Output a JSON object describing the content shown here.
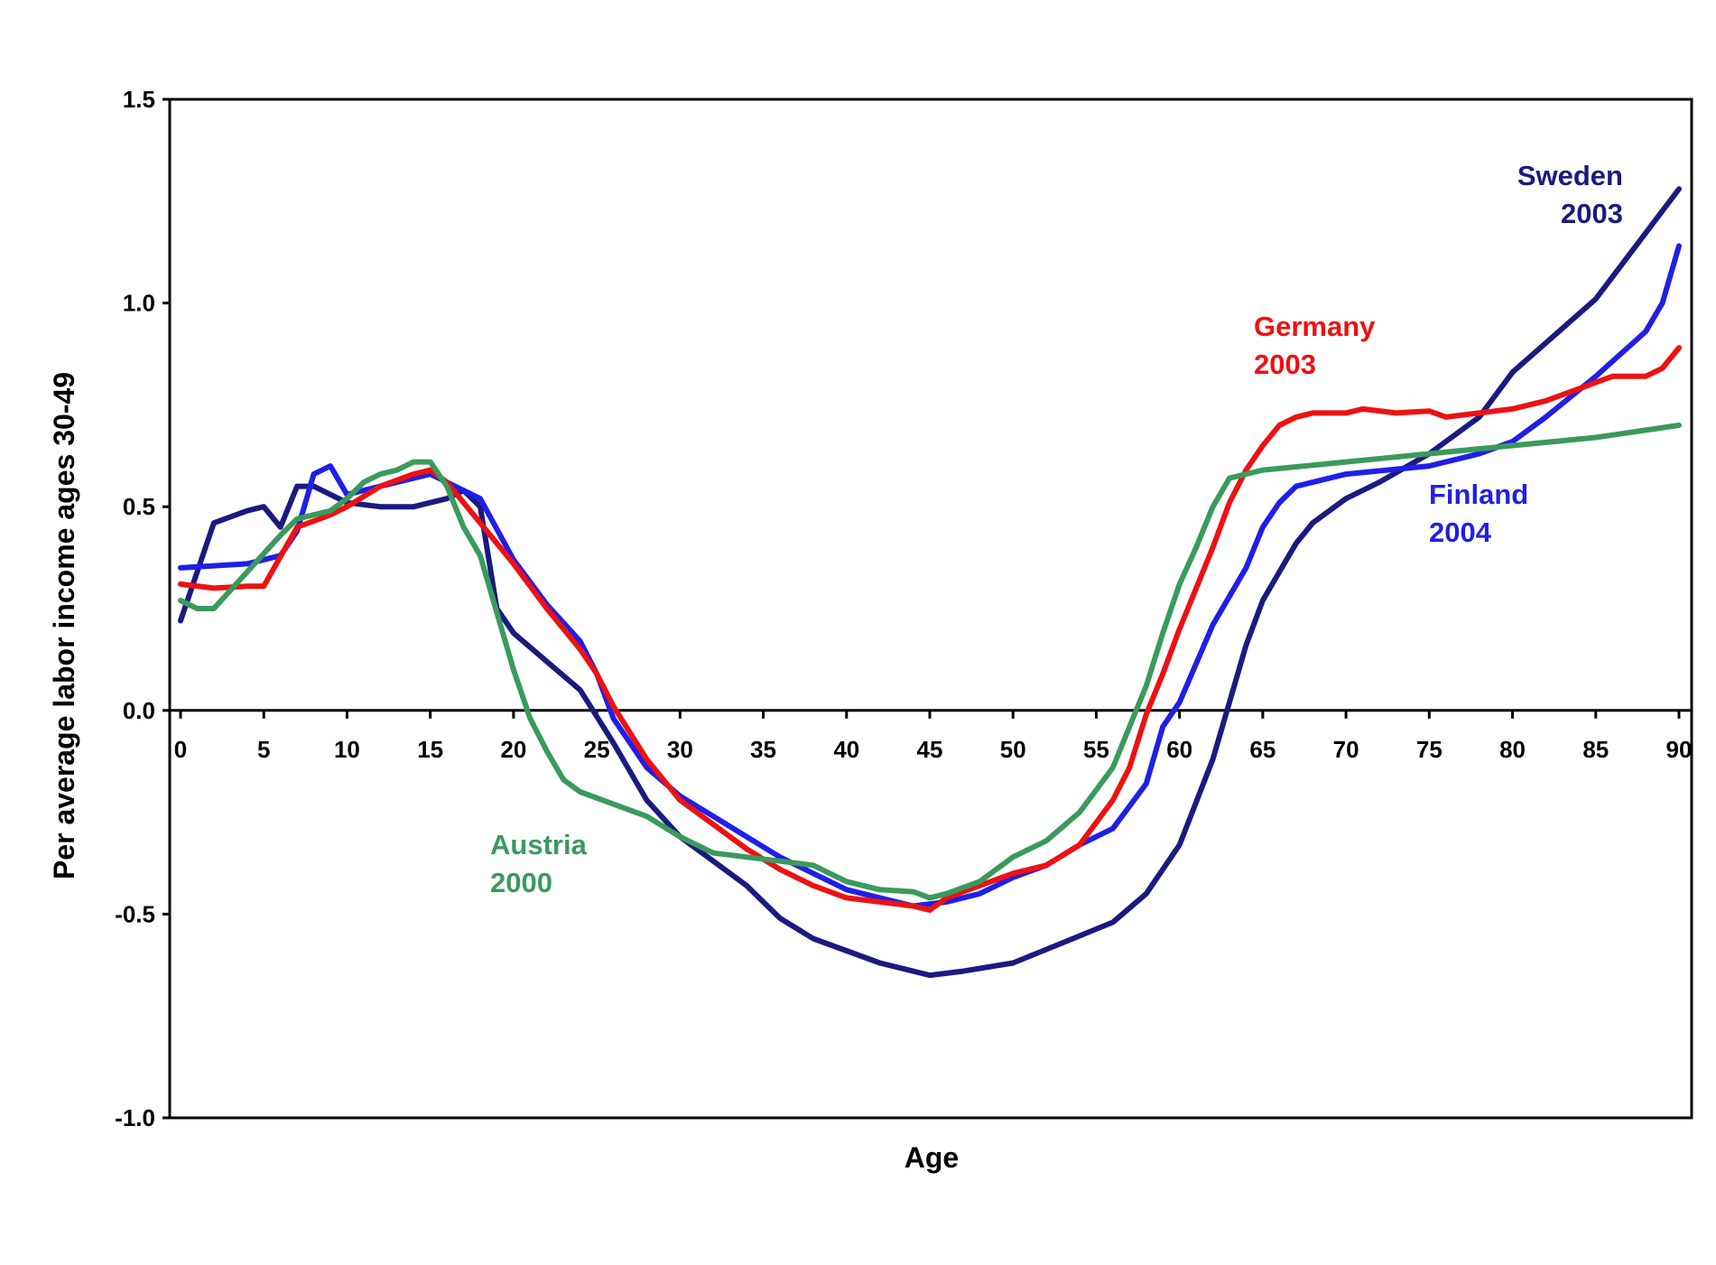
{
  "chart_data": {
    "type": "line",
    "title": "",
    "xlabel": "Age",
    "ylabel": "Per average labor income ages 30-49",
    "xlim": [
      0,
      90
    ],
    "ylim": [
      -1.0,
      1.5
    ],
    "xticks": [
      0,
      5,
      10,
      15,
      20,
      25,
      30,
      35,
      40,
      45,
      50,
      55,
      60,
      65,
      70,
      75,
      80,
      85,
      90
    ],
    "xtick_labels": [
      "0",
      "5",
      "10",
      "15",
      "20",
      "25",
      "30",
      "35",
      "40",
      "45",
      "50",
      "55",
      "60",
      "65",
      "70",
      "75",
      "80",
      "85",
      "90"
    ],
    "yticks": [
      -1.0,
      -0.5,
      0.0,
      0.5,
      1.0,
      1.5
    ],
    "ytick_labels": [
      "-1.0",
      "-0.5",
      "0.0",
      "0.5",
      "1.0",
      "1.5"
    ],
    "grid": false,
    "legend": "inline labels next to lines",
    "series": [
      {
        "name": "Sweden 2003",
        "label_lines": [
          "Sweden",
          "2003"
        ],
        "color": "#1a1a80",
        "points": [
          [
            0,
            0.22
          ],
          [
            2,
            0.46
          ],
          [
            4,
            0.49
          ],
          [
            5,
            0.5
          ],
          [
            6,
            0.45
          ],
          [
            7,
            0.55
          ],
          [
            8,
            0.55
          ],
          [
            9,
            0.53
          ],
          [
            10,
            0.51
          ],
          [
            12,
            0.5
          ],
          [
            14,
            0.5
          ],
          [
            16,
            0.52
          ],
          [
            17,
            0.54
          ],
          [
            18,
            0.5
          ],
          [
            19,
            0.25
          ],
          [
            20,
            0.19
          ],
          [
            22,
            0.12
          ],
          [
            24,
            0.05
          ],
          [
            26,
            -0.08
          ],
          [
            28,
            -0.22
          ],
          [
            30,
            -0.31
          ],
          [
            32,
            -0.37
          ],
          [
            34,
            -0.43
          ],
          [
            36,
            -0.51
          ],
          [
            38,
            -0.56
          ],
          [
            40,
            -0.59
          ],
          [
            42,
            -0.62
          ],
          [
            44,
            -0.64
          ],
          [
            45,
            -0.65
          ],
          [
            47,
            -0.64
          ],
          [
            50,
            -0.62
          ],
          [
            53,
            -0.57
          ],
          [
            56,
            -0.52
          ],
          [
            58,
            -0.45
          ],
          [
            60,
            -0.33
          ],
          [
            62,
            -0.12
          ],
          [
            63,
            0.02
          ],
          [
            64,
            0.16
          ],
          [
            65,
            0.27
          ],
          [
            66,
            0.34
          ],
          [
            67,
            0.41
          ],
          [
            68,
            0.46
          ],
          [
            70,
            0.52
          ],
          [
            72,
            0.56
          ],
          [
            75,
            0.63
          ],
          [
            78,
            0.72
          ],
          [
            80,
            0.83
          ],
          [
            85,
            1.01
          ],
          [
            90,
            1.28
          ]
        ]
      },
      {
        "name": "Finland 2004",
        "label_lines": [
          "Finland",
          "2004"
        ],
        "color": "#1f1fe8",
        "points": [
          [
            0,
            0.35
          ],
          [
            2,
            0.355
          ],
          [
            4,
            0.36
          ],
          [
            6,
            0.38
          ],
          [
            7,
            0.44
          ],
          [
            8,
            0.58
          ],
          [
            9,
            0.6
          ],
          [
            10,
            0.53
          ],
          [
            12,
            0.55
          ],
          [
            14,
            0.57
          ],
          [
            15,
            0.58
          ],
          [
            16,
            0.56
          ],
          [
            18,
            0.52
          ],
          [
            20,
            0.37
          ],
          [
            22,
            0.26
          ],
          [
            24,
            0.17
          ],
          [
            25,
            0.09
          ],
          [
            26,
            -0.02
          ],
          [
            28,
            -0.14
          ],
          [
            30,
            -0.21
          ],
          [
            32,
            -0.26
          ],
          [
            34,
            -0.31
          ],
          [
            36,
            -0.36
          ],
          [
            38,
            -0.4
          ],
          [
            40,
            -0.44
          ],
          [
            42,
            -0.46
          ],
          [
            44,
            -0.48
          ],
          [
            46,
            -0.47
          ],
          [
            48,
            -0.45
          ],
          [
            50,
            -0.41
          ],
          [
            52,
            -0.38
          ],
          [
            54,
            -0.33
          ],
          [
            56,
            -0.29
          ],
          [
            58,
            -0.18
          ],
          [
            59,
            -0.04
          ],
          [
            60,
            0.02
          ],
          [
            62,
            0.21
          ],
          [
            64,
            0.35
          ],
          [
            65,
            0.45
          ],
          [
            66,
            0.51
          ],
          [
            67,
            0.55
          ],
          [
            70,
            0.58
          ],
          [
            75,
            0.6
          ],
          [
            78,
            0.63
          ],
          [
            80,
            0.66
          ],
          [
            82,
            0.72
          ],
          [
            85,
            0.82
          ],
          [
            88,
            0.93
          ],
          [
            89,
            1.0
          ],
          [
            90,
            1.14
          ]
        ]
      },
      {
        "name": "Germany 2003",
        "label_lines": [
          "Germany",
          "2003"
        ],
        "color": "#ee1111",
        "points": [
          [
            0,
            0.31
          ],
          [
            2,
            0.3
          ],
          [
            4,
            0.305
          ],
          [
            5,
            0.305
          ],
          [
            7,
            0.45
          ],
          [
            9,
            0.48
          ],
          [
            10,
            0.5
          ],
          [
            12,
            0.55
          ],
          [
            14,
            0.58
          ],
          [
            15,
            0.59
          ],
          [
            16,
            0.56
          ],
          [
            18,
            0.46
          ],
          [
            20,
            0.36
          ],
          [
            22,
            0.25
          ],
          [
            24,
            0.15
          ],
          [
            25,
            0.09
          ],
          [
            26,
            0.01
          ],
          [
            28,
            -0.12
          ],
          [
            30,
            -0.22
          ],
          [
            32,
            -0.28
          ],
          [
            34,
            -0.34
          ],
          [
            36,
            -0.39
          ],
          [
            38,
            -0.43
          ],
          [
            40,
            -0.46
          ],
          [
            42,
            -0.47
          ],
          [
            44,
            -0.48
          ],
          [
            45,
            -0.49
          ],
          [
            46,
            -0.46
          ],
          [
            48,
            -0.43
          ],
          [
            50,
            -0.4
          ],
          [
            52,
            -0.38
          ],
          [
            54,
            -0.33
          ],
          [
            56,
            -0.22
          ],
          [
            57,
            -0.14
          ],
          [
            58,
            -0.01
          ],
          [
            59,
            0.09
          ],
          [
            60,
            0.2
          ],
          [
            62,
            0.4
          ],
          [
            63,
            0.51
          ],
          [
            64,
            0.59
          ],
          [
            65,
            0.65
          ],
          [
            66,
            0.7
          ],
          [
            67,
            0.72
          ],
          [
            68,
            0.73
          ],
          [
            70,
            0.73
          ],
          [
            71,
            0.74
          ],
          [
            73,
            0.73
          ],
          [
            75,
            0.735
          ],
          [
            76,
            0.72
          ],
          [
            78,
            0.73
          ],
          [
            80,
            0.74
          ],
          [
            82,
            0.76
          ],
          [
            84,
            0.79
          ],
          [
            86,
            0.82
          ],
          [
            88,
            0.82
          ],
          [
            89,
            0.84
          ],
          [
            90,
            0.89
          ]
        ]
      },
      {
        "name": "Austria 2000",
        "label_lines": [
          "Austria",
          "2000"
        ],
        "color": "#3a9a5c",
        "points": [
          [
            0,
            0.27
          ],
          [
            1,
            0.25
          ],
          [
            2,
            0.25
          ],
          [
            4,
            0.34
          ],
          [
            6,
            0.43
          ],
          [
            7,
            0.47
          ],
          [
            9,
            0.49
          ],
          [
            10,
            0.52
          ],
          [
            11,
            0.56
          ],
          [
            12,
            0.58
          ],
          [
            13,
            0.59
          ],
          [
            14,
            0.61
          ],
          [
            15,
            0.61
          ],
          [
            16,
            0.55
          ],
          [
            17,
            0.45
          ],
          [
            18,
            0.38
          ],
          [
            19,
            0.24
          ],
          [
            20,
            0.1
          ],
          [
            21,
            -0.02
          ],
          [
            22,
            -0.1
          ],
          [
            23,
            -0.17
          ],
          [
            24,
            -0.2
          ],
          [
            26,
            -0.23
          ],
          [
            28,
            -0.26
          ],
          [
            30,
            -0.31
          ],
          [
            32,
            -0.35
          ],
          [
            34,
            -0.36
          ],
          [
            36,
            -0.37
          ],
          [
            38,
            -0.38
          ],
          [
            40,
            -0.42
          ],
          [
            42,
            -0.44
          ],
          [
            44,
            -0.445
          ],
          [
            45,
            -0.46
          ],
          [
            46,
            -0.45
          ],
          [
            48,
            -0.42
          ],
          [
            50,
            -0.36
          ],
          [
            52,
            -0.32
          ],
          [
            54,
            -0.25
          ],
          [
            56,
            -0.14
          ],
          [
            57,
            -0.04
          ],
          [
            58,
            0.06
          ],
          [
            59,
            0.19
          ],
          [
            60,
            0.31
          ],
          [
            61,
            0.4
          ],
          [
            62,
            0.5
          ],
          [
            63,
            0.57
          ],
          [
            65,
            0.59
          ],
          [
            70,
            0.61
          ],
          [
            75,
            0.63
          ],
          [
            80,
            0.65
          ],
          [
            85,
            0.67
          ],
          [
            90,
            0.7
          ]
        ]
      }
    ]
  }
}
